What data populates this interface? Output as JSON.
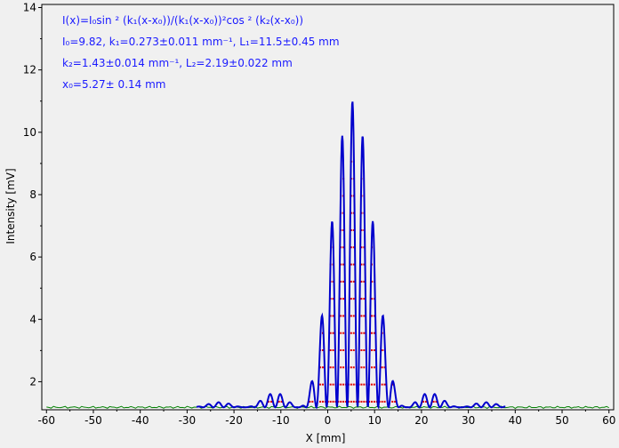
{
  "chart_data": {
    "type": "scatter",
    "xlabel": "X [mm]",
    "ylabel": "Intensity [mV]",
    "xlim": [
      -61,
      61
    ],
    "ylim": [
      1.1,
      14.1
    ],
    "x_ticks": [
      -60,
      -50,
      -40,
      -30,
      -20,
      -10,
      0,
      10,
      20,
      30,
      40,
      50,
      60
    ],
    "y_ticks": [
      2,
      4,
      6,
      8,
      10,
      12,
      14
    ],
    "background_baseline": 1.18,
    "annotations": [
      "I(x)=I₀sin ² (k₁(x-x₀))/(k₁(x-x₀))²cos ² (k₂(x-x₀))",
      "I₀=9.82,  k₁=0.273±0.011 mm⁻¹,   L₁=11.5±0.45 mm",
      "k₂=1.43±0.014 mm⁻¹,   L₂=2.19±0.022 mm",
      "x₀=5.27±  0.14 mm"
    ],
    "fit": {
      "I0": 9.82,
      "k1": 0.273,
      "k2": 1.43,
      "x0": 5.27,
      "offset": 1.18,
      "x_range": [
        -28,
        38
      ]
    },
    "series": [
      {
        "role": "background",
        "color": "#008000",
        "x_range": [
          -60,
          60
        ],
        "y": 1.18
      },
      {
        "role": "measured",
        "color": "#e00000",
        "x_range": [
          -28,
          38
        ]
      },
      {
        "role": "fit",
        "color": "#0000cc",
        "x_range": [
          -28,
          38
        ]
      }
    ],
    "grid": false
  }
}
